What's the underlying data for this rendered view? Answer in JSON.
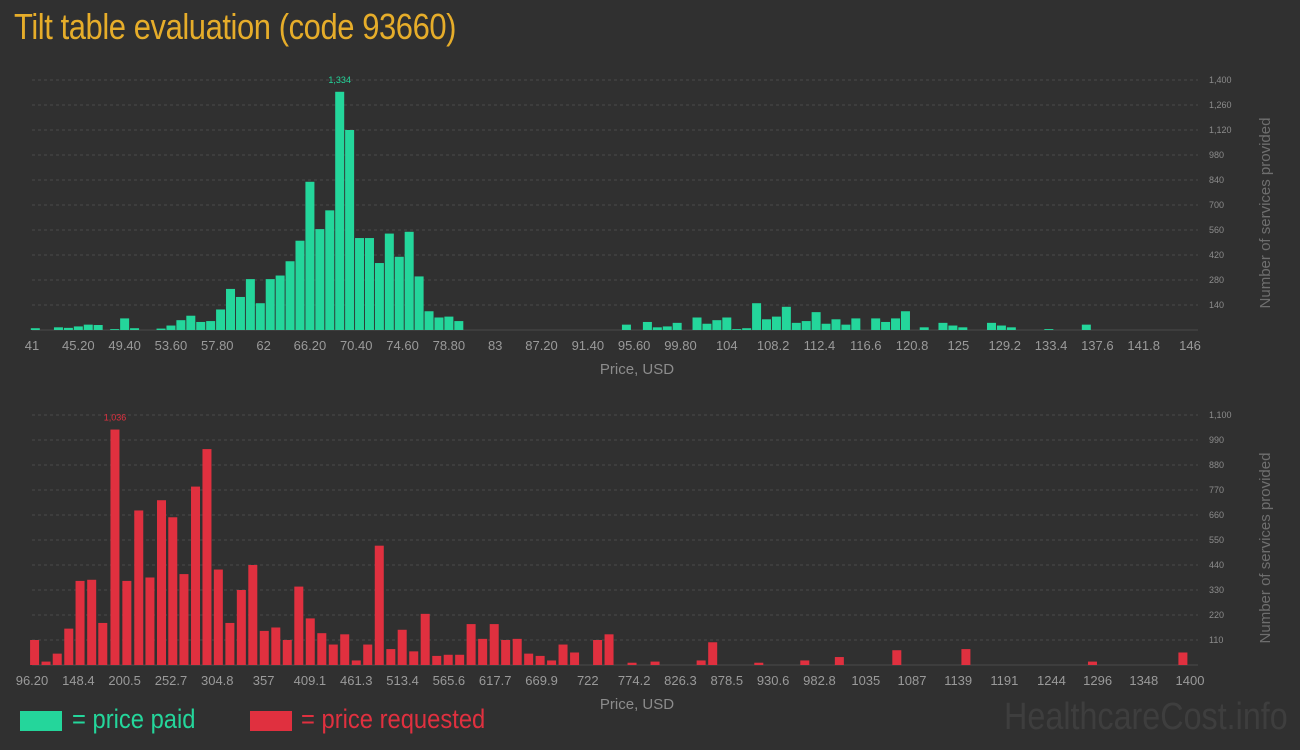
{
  "title": "Tilt table evaluation (code 93660)",
  "watermark": "HealthcareCost.info",
  "legend": [
    {
      "label": "= price paid",
      "color": "#24d69b"
    },
    {
      "label": "= price requested",
      "color": "#e0303f"
    }
  ],
  "chart_data": [
    {
      "type": "bar",
      "color": "#24d69b",
      "xlabel": "Price, USD",
      "ylabel": "Number of services provided",
      "ylim": [
        0,
        1400
      ],
      "xlim": [
        41,
        146
      ],
      "ytick_labels": [
        "140",
        "280",
        "420",
        "560",
        "700",
        "840",
        "980",
        "1,120",
        "1,260",
        "1,400"
      ],
      "ytick_values": [
        140,
        280,
        420,
        560,
        700,
        840,
        980,
        1120,
        1260,
        1400
      ],
      "xtick_labels": [
        "41",
        "45.20",
        "49.40",
        "53.60",
        "57.80",
        "62",
        "66.20",
        "70.40",
        "74.60",
        "78.80",
        "83",
        "87.20",
        "91.40",
        "95.60",
        "99.80",
        "104",
        "108.2",
        "112.4",
        "116.6",
        "120.8",
        "125",
        "129.2",
        "133.4",
        "137.6",
        "141.8",
        "146"
      ],
      "xtick_values": [
        41,
        45.2,
        49.4,
        53.6,
        57.8,
        62,
        66.2,
        70.4,
        74.6,
        78.8,
        83,
        87.2,
        91.4,
        95.6,
        99.8,
        104,
        108.2,
        112.4,
        116.6,
        120.8,
        125,
        129.2,
        133.4,
        137.6,
        141.8,
        146
      ],
      "peak_label": "1,334",
      "bars": [
        [
          41.3,
          10
        ],
        [
          43.4,
          15
        ],
        [
          44.3,
          12
        ],
        [
          45.2,
          20
        ],
        [
          46.1,
          30
        ],
        [
          47.0,
          28
        ],
        [
          48.5,
          5
        ],
        [
          49.4,
          65
        ],
        [
          50.3,
          10
        ],
        [
          52.7,
          8
        ],
        [
          53.6,
          25
        ],
        [
          54.5,
          55
        ],
        [
          55.4,
          80
        ],
        [
          56.3,
          45
        ],
        [
          57.2,
          50
        ],
        [
          58.1,
          115
        ],
        [
          59.0,
          230
        ],
        [
          59.9,
          185
        ],
        [
          60.8,
          285
        ],
        [
          61.7,
          150
        ],
        [
          62.6,
          285
        ],
        [
          63.5,
          305
        ],
        [
          64.4,
          385
        ],
        [
          65.3,
          500
        ],
        [
          66.2,
          830
        ],
        [
          67.1,
          565
        ],
        [
          68.0,
          670
        ],
        [
          68.9,
          1334
        ],
        [
          69.8,
          1120
        ],
        [
          70.7,
          515
        ],
        [
          71.6,
          515
        ],
        [
          72.5,
          375
        ],
        [
          73.4,
          540
        ],
        [
          74.3,
          410
        ],
        [
          75.2,
          550
        ],
        [
          76.1,
          300
        ],
        [
          77.0,
          105
        ],
        [
          77.9,
          70
        ],
        [
          78.8,
          75
        ],
        [
          79.7,
          50
        ],
        [
          94.9,
          30
        ],
        [
          96.8,
          45
        ],
        [
          97.7,
          15
        ],
        [
          98.6,
          20
        ],
        [
          99.5,
          40
        ],
        [
          101.3,
          70
        ],
        [
          102.2,
          35
        ],
        [
          103.1,
          55
        ],
        [
          104.0,
          70
        ],
        [
          104.9,
          5
        ],
        [
          105.8,
          10
        ],
        [
          106.7,
          150
        ],
        [
          107.6,
          60
        ],
        [
          108.5,
          75
        ],
        [
          109.4,
          130
        ],
        [
          110.3,
          40
        ],
        [
          111.2,
          50
        ],
        [
          112.1,
          100
        ],
        [
          113.0,
          35
        ],
        [
          113.9,
          60
        ],
        [
          114.8,
          30
        ],
        [
          115.7,
          65
        ],
        [
          117.5,
          65
        ],
        [
          118.4,
          45
        ],
        [
          119.3,
          65
        ],
        [
          120.2,
          105
        ],
        [
          121.9,
          15
        ],
        [
          123.6,
          40
        ],
        [
          124.5,
          25
        ],
        [
          125.4,
          15
        ],
        [
          128.0,
          40
        ],
        [
          128.9,
          25
        ],
        [
          129.8,
          15
        ],
        [
          133.2,
          5
        ],
        [
          136.6,
          30
        ]
      ]
    },
    {
      "type": "bar",
      "color": "#e0303f",
      "xlabel": "Price, USD",
      "ylabel": "Number of services provided",
      "ylim": [
        0,
        1100
      ],
      "xlim": [
        96.2,
        1400
      ],
      "ytick_labels": [
        "110",
        "220",
        "330",
        "440",
        "550",
        "660",
        "770",
        "880",
        "990",
        "1,100"
      ],
      "ytick_values": [
        110,
        220,
        330,
        440,
        550,
        660,
        770,
        880,
        990,
        1100
      ],
      "xtick_labels": [
        "96.20",
        "148.4",
        "200.5",
        "252.7",
        "304.8",
        "357",
        "409.1",
        "461.3",
        "513.4",
        "565.6",
        "617.7",
        "669.9",
        "722",
        "774.2",
        "826.3",
        "878.5",
        "930.6",
        "982.8",
        "1035",
        "1087",
        "1139",
        "1191",
        "1244",
        "1296",
        "1348",
        "1400"
      ],
      "xtick_values": [
        96.2,
        148.4,
        200.5,
        252.7,
        304.8,
        357,
        409.1,
        461.3,
        513.4,
        565.6,
        617.7,
        669.9,
        722,
        774.2,
        826.3,
        878.5,
        930.6,
        982.8,
        1035,
        1087,
        1139,
        1191,
        1244,
        1296,
        1348,
        1400
      ],
      "peak_label": "1,036",
      "bars": [
        [
          99.1,
          110
        ],
        [
          112.0,
          15
        ],
        [
          124.6,
          50
        ],
        [
          137.6,
          160
        ],
        [
          150.3,
          370
        ],
        [
          163.4,
          375
        ],
        [
          175.9,
          185
        ],
        [
          189.6,
          1036
        ],
        [
          203.0,
          370
        ],
        [
          216.4,
          680
        ],
        [
          229.0,
          385
        ],
        [
          242.0,
          725
        ],
        [
          254.7,
          650
        ],
        [
          267.3,
          400
        ],
        [
          280.3,
          785
        ],
        [
          293.2,
          950
        ],
        [
          306.0,
          420
        ],
        [
          319.0,
          185
        ],
        [
          331.9,
          330
        ],
        [
          344.8,
          440
        ],
        [
          357.7,
          150
        ],
        [
          370.7,
          165
        ],
        [
          383.6,
          110
        ],
        [
          396.6,
          345
        ],
        [
          409.5,
          205
        ],
        [
          422.5,
          140
        ],
        [
          435.4,
          90
        ],
        [
          448.3,
          135
        ],
        [
          461.3,
          20
        ],
        [
          474.2,
          90
        ],
        [
          487.2,
          525
        ],
        [
          500.2,
          70
        ],
        [
          513.0,
          155
        ],
        [
          526.0,
          60
        ],
        [
          538.9,
          225
        ],
        [
          551.9,
          40
        ],
        [
          564.8,
          45
        ],
        [
          577.7,
          45
        ],
        [
          590.6,
          180
        ],
        [
          603.6,
          115
        ],
        [
          616.6,
          180
        ],
        [
          629.5,
          110
        ],
        [
          642.5,
          115
        ],
        [
          655.4,
          50
        ],
        [
          668.3,
          40
        ],
        [
          681.2,
          20
        ],
        [
          694.1,
          90
        ],
        [
          707.1,
          55
        ],
        [
          733.0,
          110
        ],
        [
          745.9,
          135
        ],
        [
          771.8,
          10
        ],
        [
          797.7,
          15
        ],
        [
          849.6,
          20
        ],
        [
          862.6,
          100
        ],
        [
          914.5,
          10
        ],
        [
          966.3,
          20
        ],
        [
          1005.2,
          35
        ],
        [
          1069.9,
          65
        ],
        [
          1147.7,
          70
        ],
        [
          1290.2,
          15
        ],
        [
          1392.0,
          55
        ]
      ]
    }
  ]
}
